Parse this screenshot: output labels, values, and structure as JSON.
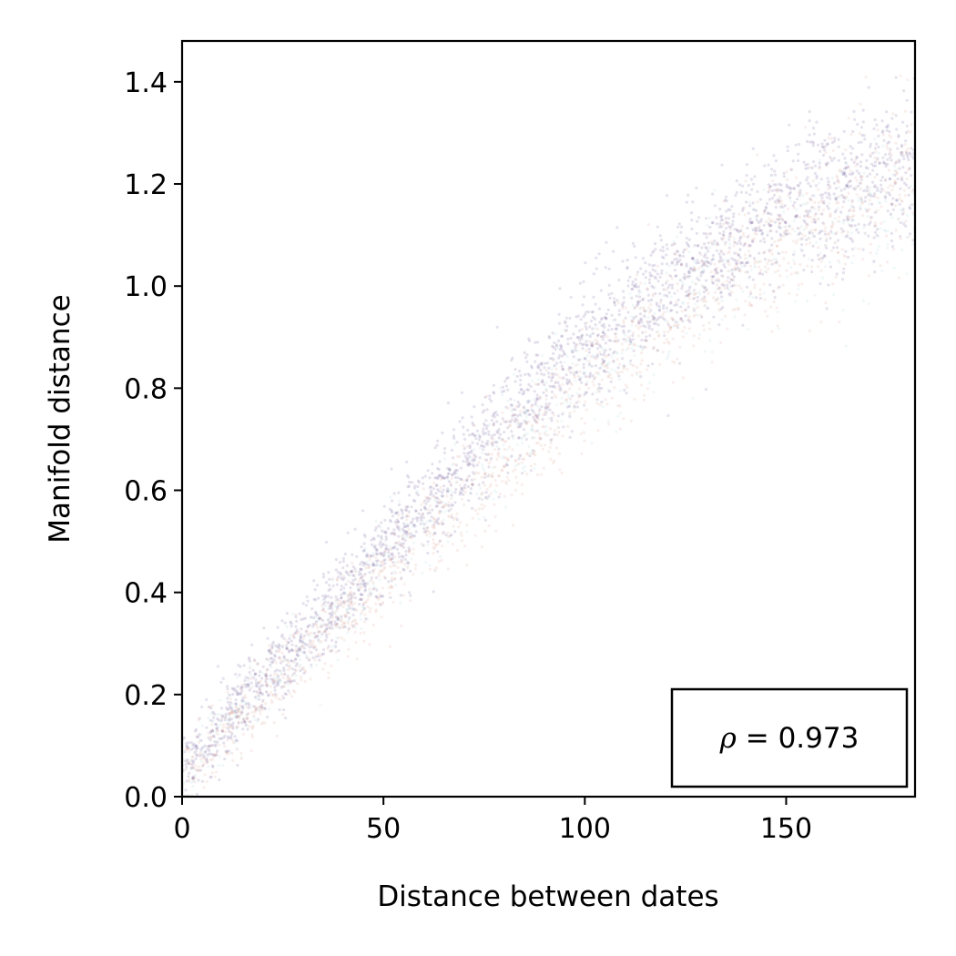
{
  "chart_data": {
    "type": "scatter",
    "title": "",
    "xlabel": "Distance between dates",
    "ylabel": "Manifold distance",
    "xlim": [
      0,
      182
    ],
    "ylim": [
      0,
      1.48
    ],
    "xticks": [
      0,
      50,
      100,
      150
    ],
    "xtick_labels": [
      "0",
      "50",
      "100",
      "150"
    ],
    "yticks": [
      0.0,
      0.2,
      0.4,
      0.6,
      0.8,
      1.0,
      1.2,
      1.4
    ],
    "ytick_labels": [
      "0.0",
      "0.2",
      "0.4",
      "0.6",
      "0.8",
      "1.0",
      "1.2",
      "1.4"
    ],
    "grid": false,
    "legend": "none",
    "annotation": {
      "symbol": "ρ",
      "equals": " = ",
      "value": "0.973",
      "placement": "lower-right"
    },
    "series": [
      {
        "color": "#4b2f7f",
        "trend": [
          [
            0,
            0.05
          ],
          [
            25,
            0.27
          ],
          [
            50,
            0.48
          ],
          [
            75,
            0.7
          ],
          [
            100,
            0.88
          ],
          [
            125,
            1.03
          ],
          [
            150,
            1.15
          ],
          [
            182,
            1.25
          ]
        ]
      },
      {
        "color": "#c4704e",
        "trend": [
          [
            0,
            0.04
          ],
          [
            25,
            0.23
          ],
          [
            50,
            0.43
          ],
          [
            75,
            0.62
          ],
          [
            100,
            0.8
          ],
          [
            125,
            0.96
          ],
          [
            150,
            1.1
          ],
          [
            182,
            1.22
          ]
        ]
      },
      {
        "color": "#8fc3cc",
        "trend": [
          [
            0,
            0.05
          ],
          [
            25,
            0.25
          ],
          [
            50,
            0.45
          ],
          [
            75,
            0.65
          ],
          [
            100,
            0.83
          ],
          [
            125,
            0.98
          ],
          [
            150,
            1.08
          ],
          [
            182,
            1.15
          ]
        ]
      }
    ]
  }
}
